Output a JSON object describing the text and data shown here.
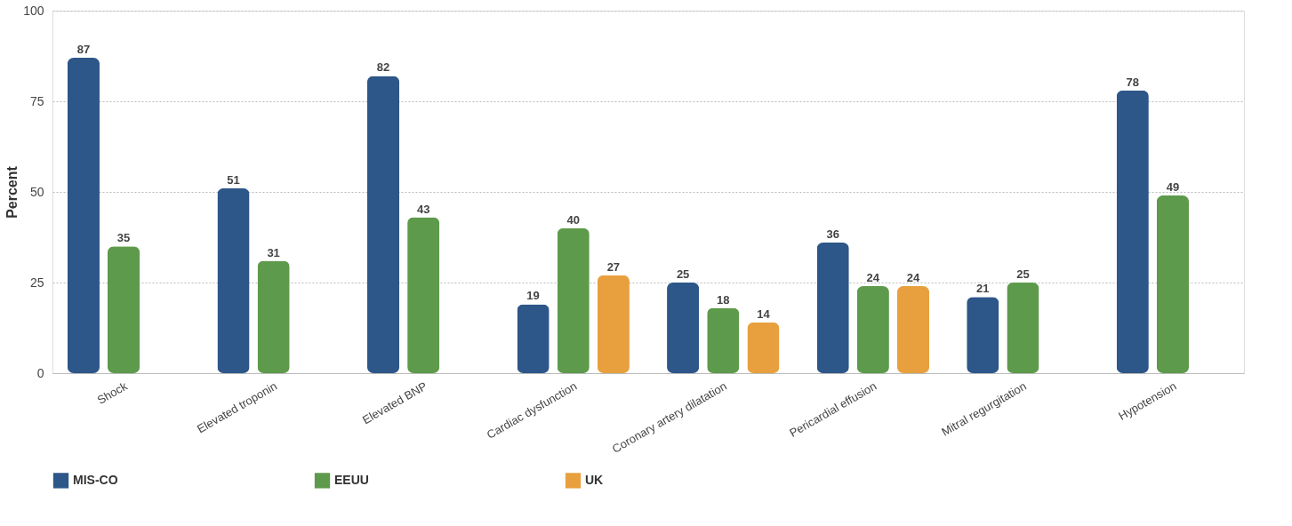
{
  "chart_data": {
    "type": "bar",
    "ylabel": "Percent",
    "categories": [
      "Shock",
      "Elevated troponin",
      "Elevated BNP",
      "Cardiac dysfunction",
      "Coronary artery dilatation",
      "Pericardial effusion",
      "Mitral regurgitation",
      "Hypotension"
    ],
    "series": [
      {
        "name": "MIS-CO",
        "color": "#2d5689",
        "values": [
          87,
          51,
          82,
          19,
          25,
          36,
          21,
          78
        ]
      },
      {
        "name": "EEUU",
        "color": "#5e9a4b",
        "values": [
          35,
          31,
          43,
          40,
          18,
          24,
          25,
          49
        ]
      },
      {
        "name": "UK",
        "color": "#e8a03f",
        "values": [
          null,
          null,
          null,
          27,
          14,
          24,
          null,
          null
        ]
      }
    ],
    "ylim": [
      0,
      100
    ],
    "yticks": [
      0,
      25,
      50,
      75,
      100
    ],
    "grid": "y",
    "legend": "bottom",
    "data_labels": true
  }
}
